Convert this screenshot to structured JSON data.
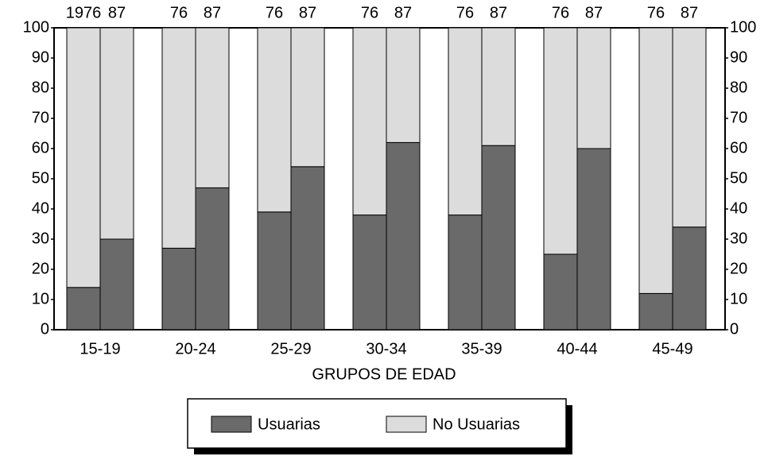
{
  "chart_data": {
    "type": "bar",
    "stacked": true,
    "xlabel": "GRUPOS DE EDAD",
    "groups": [
      "15-19",
      "20-24",
      "25-29",
      "30-34",
      "35-39",
      "40-44",
      "45-49"
    ],
    "categories": [
      "1976",
      "87",
      "76",
      "87",
      "76",
      "87",
      "76",
      "87",
      "76",
      "87",
      "76",
      "87",
      "76",
      "87"
    ],
    "series": [
      {
        "name": "Usuarias",
        "color": "#6a6a6a",
        "values": [
          14,
          30,
          27,
          47,
          39,
          54,
          38,
          62,
          38,
          61,
          25,
          60,
          12,
          34
        ]
      },
      {
        "name": "No Usuarias",
        "color": "#dcdcdc",
        "values": [
          86,
          70,
          73,
          53,
          61,
          46,
          62,
          38,
          62,
          39,
          75,
          40,
          88,
          66
        ]
      }
    ],
    "ylim": [
      0,
      100
    ],
    "yticks": [
      0,
      10,
      20,
      30,
      40,
      50,
      60,
      70,
      80,
      90,
      100
    ],
    "right_axis": true
  }
}
